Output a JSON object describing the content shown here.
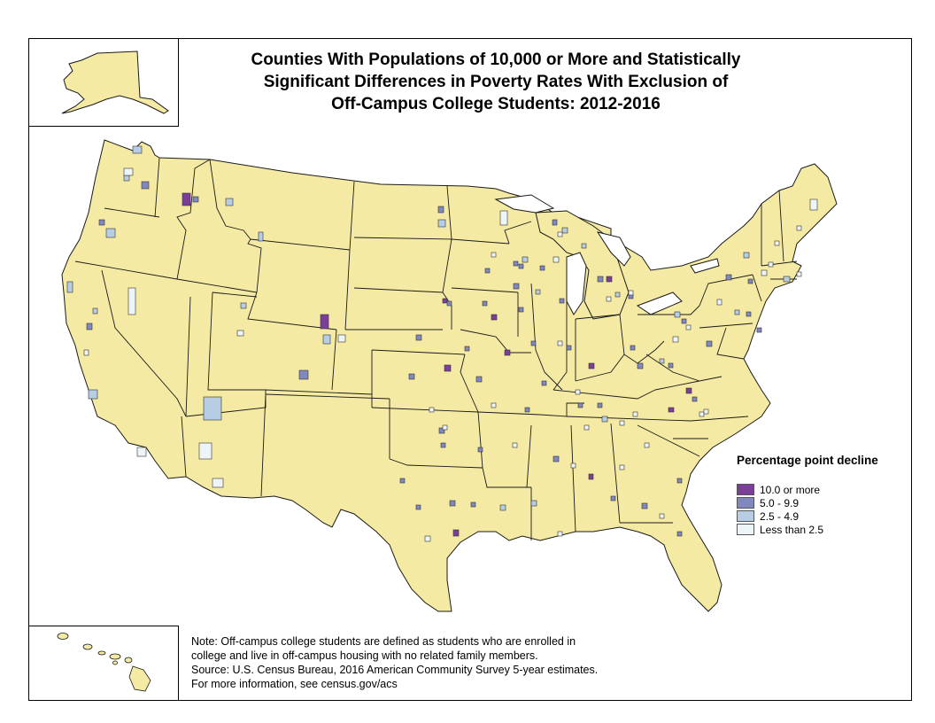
{
  "title": {
    "line1": "Counties With Populations of 10,000 or More and Statistically",
    "line2": "Significant Differences in Poverty Rates With Exclusion of",
    "line3": "Off-Campus College Students: 2012-2016"
  },
  "legend": {
    "title": "Percentage point decline",
    "items": [
      {
        "label": "10.0 or more",
        "color": "#7b3f98"
      },
      {
        "label": "5.0 - 9.9",
        "color": "#8088bd"
      },
      {
        "label": "2.5 - 4.9",
        "color": "#b7cde3"
      },
      {
        "label": "Less than 2.5",
        "color": "#eef5f9"
      }
    ]
  },
  "colors": {
    "land": "#f5eaa3",
    "state_border": "#1a1a1a"
  },
  "notes": {
    "line1": "Note: Off-campus college students are defined as students who are enrolled in",
    "line2": "college and live in off-campus housing with no related family members.",
    "line3": "Source: U.S. Census Bureau, 2016 American Community Survey 5-year estimates.",
    "line4": "For more information, see census.gov/acs"
  }
}
